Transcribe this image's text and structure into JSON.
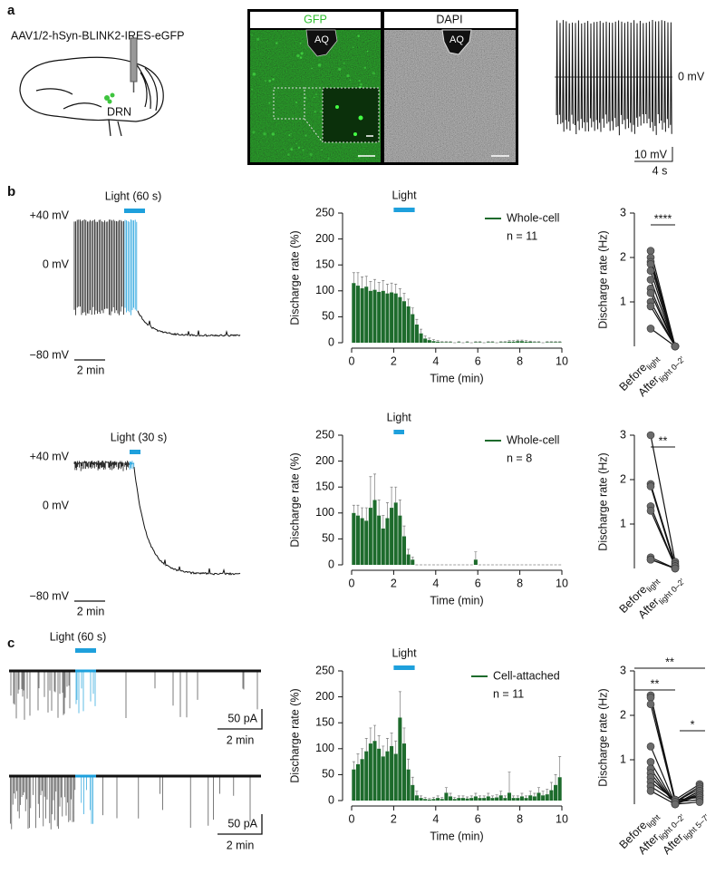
{
  "panel_labels": [
    "a",
    "b",
    "c"
  ],
  "panel_a": {
    "construct": "AAV1/2-hSyn-BLINK2-IRES-eGFP",
    "region": "DRN",
    "images": [
      {
        "title": "GFP",
        "landmark": "AQ"
      },
      {
        "title": "DAPI",
        "landmark": "AQ"
      }
    ],
    "trace_level": "0 mV",
    "scale_y": "10 mV",
    "scale_x": "4 s"
  },
  "traces": [
    {
      "light": "Light (60 s)",
      "levels": [
        "+40 mV",
        "0 mV",
        "−80 mV"
      ],
      "scales": [
        {
          "x": "2 min"
        }
      ]
    },
    {
      "light": "Light (30 s)",
      "levels": [
        "+40 mV",
        "0 mV",
        "−80 mV"
      ],
      "scales": [
        {
          "x": "2 min"
        }
      ]
    },
    {
      "light": "Light (60 s)",
      "scales": [
        {
          "y": "50 pA",
          "x": "2 min"
        },
        {
          "y": "50 pA",
          "x": "2 min"
        }
      ]
    }
  ],
  "chart_data": [
    {
      "type": "histogram",
      "ylabel": "Discharge rate (%)",
      "xlabel": "Time (min)",
      "light_label": "Light",
      "light": [
        2,
        3
      ],
      "legend": "Whole-cell",
      "n_label": "n = 11",
      "color": "#1d6b2c",
      "bins": [
        0,
        0.2,
        0.4,
        0.6,
        0.8,
        1,
        1.2,
        1.4,
        1.6,
        1.8,
        2,
        2.2,
        2.4,
        2.6,
        2.8,
        3,
        3.2,
        3.4,
        3.6,
        3.8,
        4,
        4.2,
        4.4,
        4.6,
        4.8,
        5,
        5.2,
        5.4,
        5.6,
        5.8,
        6,
        6.2,
        6.4,
        6.6,
        6.8,
        7,
        7.2,
        7.4,
        7.6,
        7.8,
        8,
        8.2,
        8.4,
        8.6,
        8.8,
        9,
        9.2,
        9.4,
        9.6,
        9.8,
        10
      ],
      "values": [
        115,
        110,
        105,
        108,
        100,
        102,
        98,
        100,
        95,
        97,
        95,
        88,
        80,
        70,
        55,
        35,
        18,
        8,
        5,
        3,
        2,
        1,
        1,
        1,
        0,
        1,
        0,
        1,
        0,
        1,
        1,
        0,
        1,
        1,
        0,
        1,
        1,
        2,
        2,
        3,
        3,
        2,
        2,
        1,
        1,
        0,
        1,
        1,
        1,
        1
      ],
      "errors": [
        20,
        25,
        22,
        20,
        18,
        20,
        18,
        20,
        18,
        18,
        18,
        16,
        15,
        14,
        12,
        10,
        8,
        5,
        4,
        3,
        2,
        1,
        1,
        1,
        0,
        1,
        0,
        1,
        0,
        1,
        1,
        0,
        1,
        1,
        0,
        1,
        1,
        2,
        2,
        2,
        2,
        2,
        1,
        1,
        1,
        0,
        1,
        1,
        1,
        1
      ],
      "xlim": [
        0,
        10
      ],
      "xticks": [
        0,
        2,
        4,
        6,
        8,
        10
      ],
      "ylim": [
        0,
        250
      ],
      "yticks": [
        0,
        50,
        100,
        150,
        200,
        250
      ]
    },
    {
      "type": "paired",
      "ylabel": "Discharge rate (Hz)",
      "categories": [
        "Before",
        "After"
      ],
      "category_subscripts": [
        "light",
        "light 0–2′"
      ],
      "values": [
        [
          2.15,
          2.0,
          1.9,
          1.85,
          1.7,
          1.5,
          1.3,
          1.2,
          1.0,
          0.9,
          0.4
        ],
        [
          0,
          0,
          0,
          0,
          0,
          0,
          0,
          0,
          0,
          0,
          0
        ]
      ],
      "significance": [
        "****"
      ],
      "ylim": [
        0,
        3
      ],
      "yticks": [
        1,
        2,
        3
      ]
    },
    {
      "type": "histogram",
      "ylabel": "Discharge rate (%)",
      "xlabel": "Time (min)",
      "light_label": "Light",
      "light": [
        2,
        2.5
      ],
      "legend": "Whole-cell",
      "n_label": "n = 8",
      "color": "#1d6b2c",
      "bins": [
        0,
        0.2,
        0.4,
        0.6,
        0.8,
        1,
        1.2,
        1.4,
        1.6,
        1.8,
        2,
        2.2,
        2.4,
        2.6,
        2.8,
        3,
        3.2,
        3.4,
        3.6,
        3.8,
        4,
        4.2,
        4.4,
        4.6,
        4.8,
        5,
        5.2,
        5.4,
        5.6,
        5.8,
        6,
        6.2,
        6.4,
        6.6,
        6.8,
        7,
        7.2,
        7.4,
        7.6,
        7.8,
        8,
        8.2,
        8.4,
        8.6,
        8.8,
        9,
        9.2,
        9.4,
        9.6,
        9.8,
        10
      ],
      "values": [
        100,
        95,
        90,
        85,
        110,
        125,
        95,
        70,
        90,
        110,
        120,
        95,
        55,
        20,
        10,
        0,
        0,
        0,
        0,
        0,
        0,
        0,
        0,
        0,
        0,
        0,
        0,
        0,
        0,
        10,
        0,
        0,
        0,
        0,
        0,
        0,
        0,
        0,
        0,
        0,
        0,
        0,
        0,
        0,
        0,
        0,
        0,
        0,
        0,
        0
      ],
      "errors": [
        15,
        20,
        20,
        25,
        60,
        50,
        30,
        25,
        30,
        40,
        30,
        30,
        20,
        10,
        5,
        0,
        0,
        0,
        0,
        0,
        0,
        0,
        0,
        0,
        0,
        0,
        0,
        0,
        0,
        15,
        0,
        0,
        0,
        0,
        0,
        0,
        0,
        0,
        0,
        0,
        0,
        0,
        0,
        0,
        0,
        0,
        0,
        0,
        0,
        0
      ],
      "xlim": [
        0,
        10
      ],
      "xticks": [
        0,
        2,
        4,
        6,
        8,
        10
      ],
      "ylim": [
        0,
        250
      ],
      "yticks": [
        0,
        50,
        100,
        150,
        200,
        250
      ]
    },
    {
      "type": "paired",
      "ylabel": "Discharge rate (Hz)",
      "categories": [
        "Before",
        "After"
      ],
      "category_subscripts": [
        "light",
        "light 0–2′"
      ],
      "values": [
        [
          3.0,
          1.9,
          1.85,
          1.4,
          1.3,
          0.25,
          0.2,
          0.2
        ],
        [
          0.15,
          0.1,
          0.05,
          0.05,
          0.05,
          0,
          0,
          0
        ]
      ],
      "significance": [
        "**"
      ],
      "ylim": [
        0,
        3
      ],
      "yticks": [
        1,
        2,
        3
      ]
    },
    {
      "type": "histogram",
      "ylabel": "Discharge rate (%)",
      "xlabel": "Time (min)",
      "light_label": "Light",
      "light": [
        2,
        3
      ],
      "legend": "Cell-attached",
      "n_label": "n = 11",
      "color": "#1d6b2c",
      "bins": [
        0,
        0.2,
        0.4,
        0.6,
        0.8,
        1,
        1.2,
        1.4,
        1.6,
        1.8,
        2,
        2.2,
        2.4,
        2.6,
        2.8,
        3,
        3.2,
        3.4,
        3.6,
        3.8,
        4,
        4.2,
        4.4,
        4.6,
        4.8,
        5,
        5.2,
        5.4,
        5.6,
        5.8,
        6,
        6.2,
        6.4,
        6.6,
        6.8,
        7,
        7.2,
        7.4,
        7.6,
        7.8,
        8,
        8.2,
        8.4,
        8.6,
        8.8,
        9,
        9.2,
        9.4,
        9.6,
        9.8,
        10
      ],
      "values": [
        60,
        70,
        80,
        95,
        110,
        115,
        100,
        85,
        95,
        105,
        90,
        160,
        110,
        60,
        30,
        10,
        5,
        3,
        2,
        3,
        5,
        3,
        15,
        8,
        3,
        5,
        5,
        4,
        5,
        8,
        5,
        5,
        8,
        5,
        6,
        10,
        5,
        15,
        5,
        5,
        8,
        5,
        10,
        8,
        15,
        10,
        12,
        20,
        30,
        45
      ],
      "errors": [
        15,
        20,
        20,
        25,
        30,
        30,
        25,
        20,
        25,
        25,
        25,
        50,
        30,
        20,
        15,
        8,
        4,
        3,
        2,
        3,
        4,
        3,
        10,
        6,
        3,
        4,
        4,
        3,
        4,
        6,
        4,
        4,
        6,
        4,
        5,
        8,
        4,
        40,
        4,
        4,
        6,
        4,
        8,
        6,
        10,
        8,
        10,
        15,
        20,
        40
      ],
      "xlim": [
        0,
        10
      ],
      "xticks": [
        0,
        2,
        4,
        6,
        8,
        10
      ],
      "ylim": [
        0,
        250
      ],
      "yticks": [
        0,
        50,
        100,
        150,
        200,
        250
      ]
    },
    {
      "type": "paired",
      "ylabel": "Discharge rate (Hz)",
      "categories": [
        "Before",
        "After",
        "After"
      ],
      "category_subscripts": [
        "light",
        "light 0–2′",
        "light 5–7′"
      ],
      "values": [
        [
          2.45,
          2.4,
          2.25,
          1.3,
          0.95,
          0.8,
          0.7,
          0.6,
          0.5,
          0.4,
          0.3
        ],
        [
          0.1,
          0.05,
          0.05,
          0,
          0,
          0,
          0,
          0.05,
          0.1,
          0.05,
          0
        ],
        [
          0.45,
          0.4,
          0.35,
          0.3,
          0.3,
          0.25,
          0.2,
          0.2,
          0.15,
          0.1,
          0.05
        ]
      ],
      "significance": [
        "**",
        "**",
        "*"
      ],
      "ylim": [
        0,
        3
      ],
      "yticks": [
        1,
        2,
        3
      ]
    }
  ]
}
